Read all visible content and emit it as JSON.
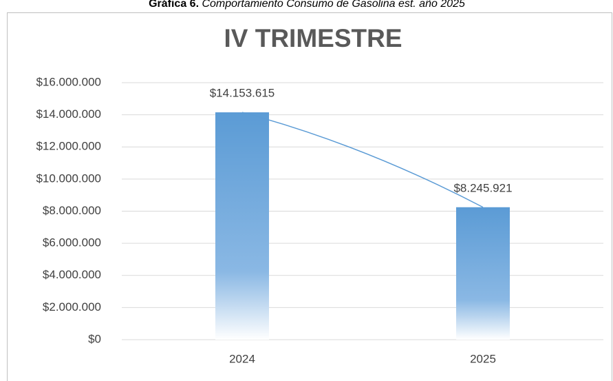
{
  "caption": {
    "number": "Gráfica 6.",
    "text": "Comportamiento Consumo de Gasolina est. año 2025"
  },
  "chart_data": {
    "type": "bar",
    "title": "IV TRIMESTRE",
    "categories": [
      "2024",
      "2025"
    ],
    "values": [
      14153615,
      8245921
    ],
    "value_labels": [
      "$14.153.615",
      "$8.245.921"
    ],
    "color": "#5b9bd5",
    "trend_line": true,
    "ylim": [
      0,
      16000000
    ],
    "yticks": [
      {
        "value": 0,
        "label": "$0"
      },
      {
        "value": 2000000,
        "label": "$2.000.000"
      },
      {
        "value": 4000000,
        "label": "$4.000.000"
      },
      {
        "value": 6000000,
        "label": "$6.000.000"
      },
      {
        "value": 8000000,
        "label": "$8.000.000"
      },
      {
        "value": 10000000,
        "label": "$10.000.000"
      },
      {
        "value": 12000000,
        "label": "$12.000.000"
      },
      {
        "value": 14000000,
        "label": "$14.000.000"
      },
      {
        "value": 16000000,
        "label": "$16.000.000"
      }
    ],
    "grid": true
  }
}
